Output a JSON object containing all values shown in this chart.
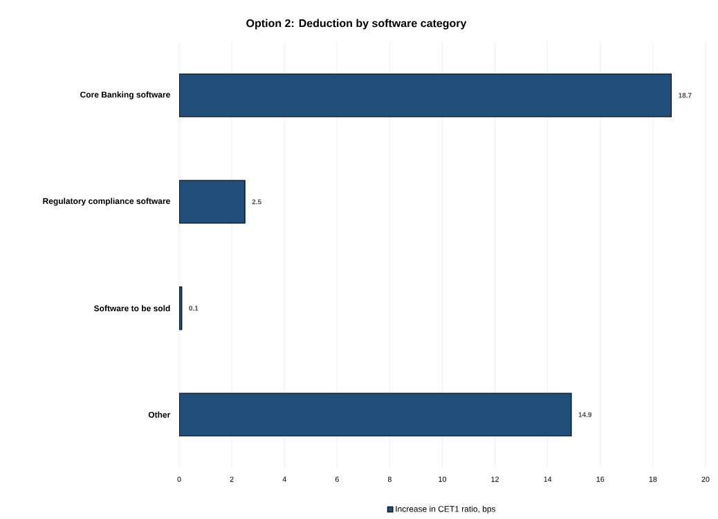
{
  "chart_data": {
    "type": "bar",
    "orientation": "horizontal",
    "title": "Option 2: Deduction by software category",
    "categories": [
      "Core Banking software",
      "Regulatory compliance software",
      "Software to be sold",
      "Other"
    ],
    "series": [
      {
        "name": "Increase in CET1 ratio, bps",
        "color": "#1f4e79",
        "values": [
          18.7,
          2.5,
          0.1,
          14.9
        ]
      }
    ],
    "data_labels": true,
    "xlim": [
      0,
      20
    ],
    "xticks": [
      0,
      2,
      4,
      6,
      8,
      10,
      12,
      14,
      16,
      18,
      20
    ],
    "grid": "x",
    "legend": "bottom"
  }
}
